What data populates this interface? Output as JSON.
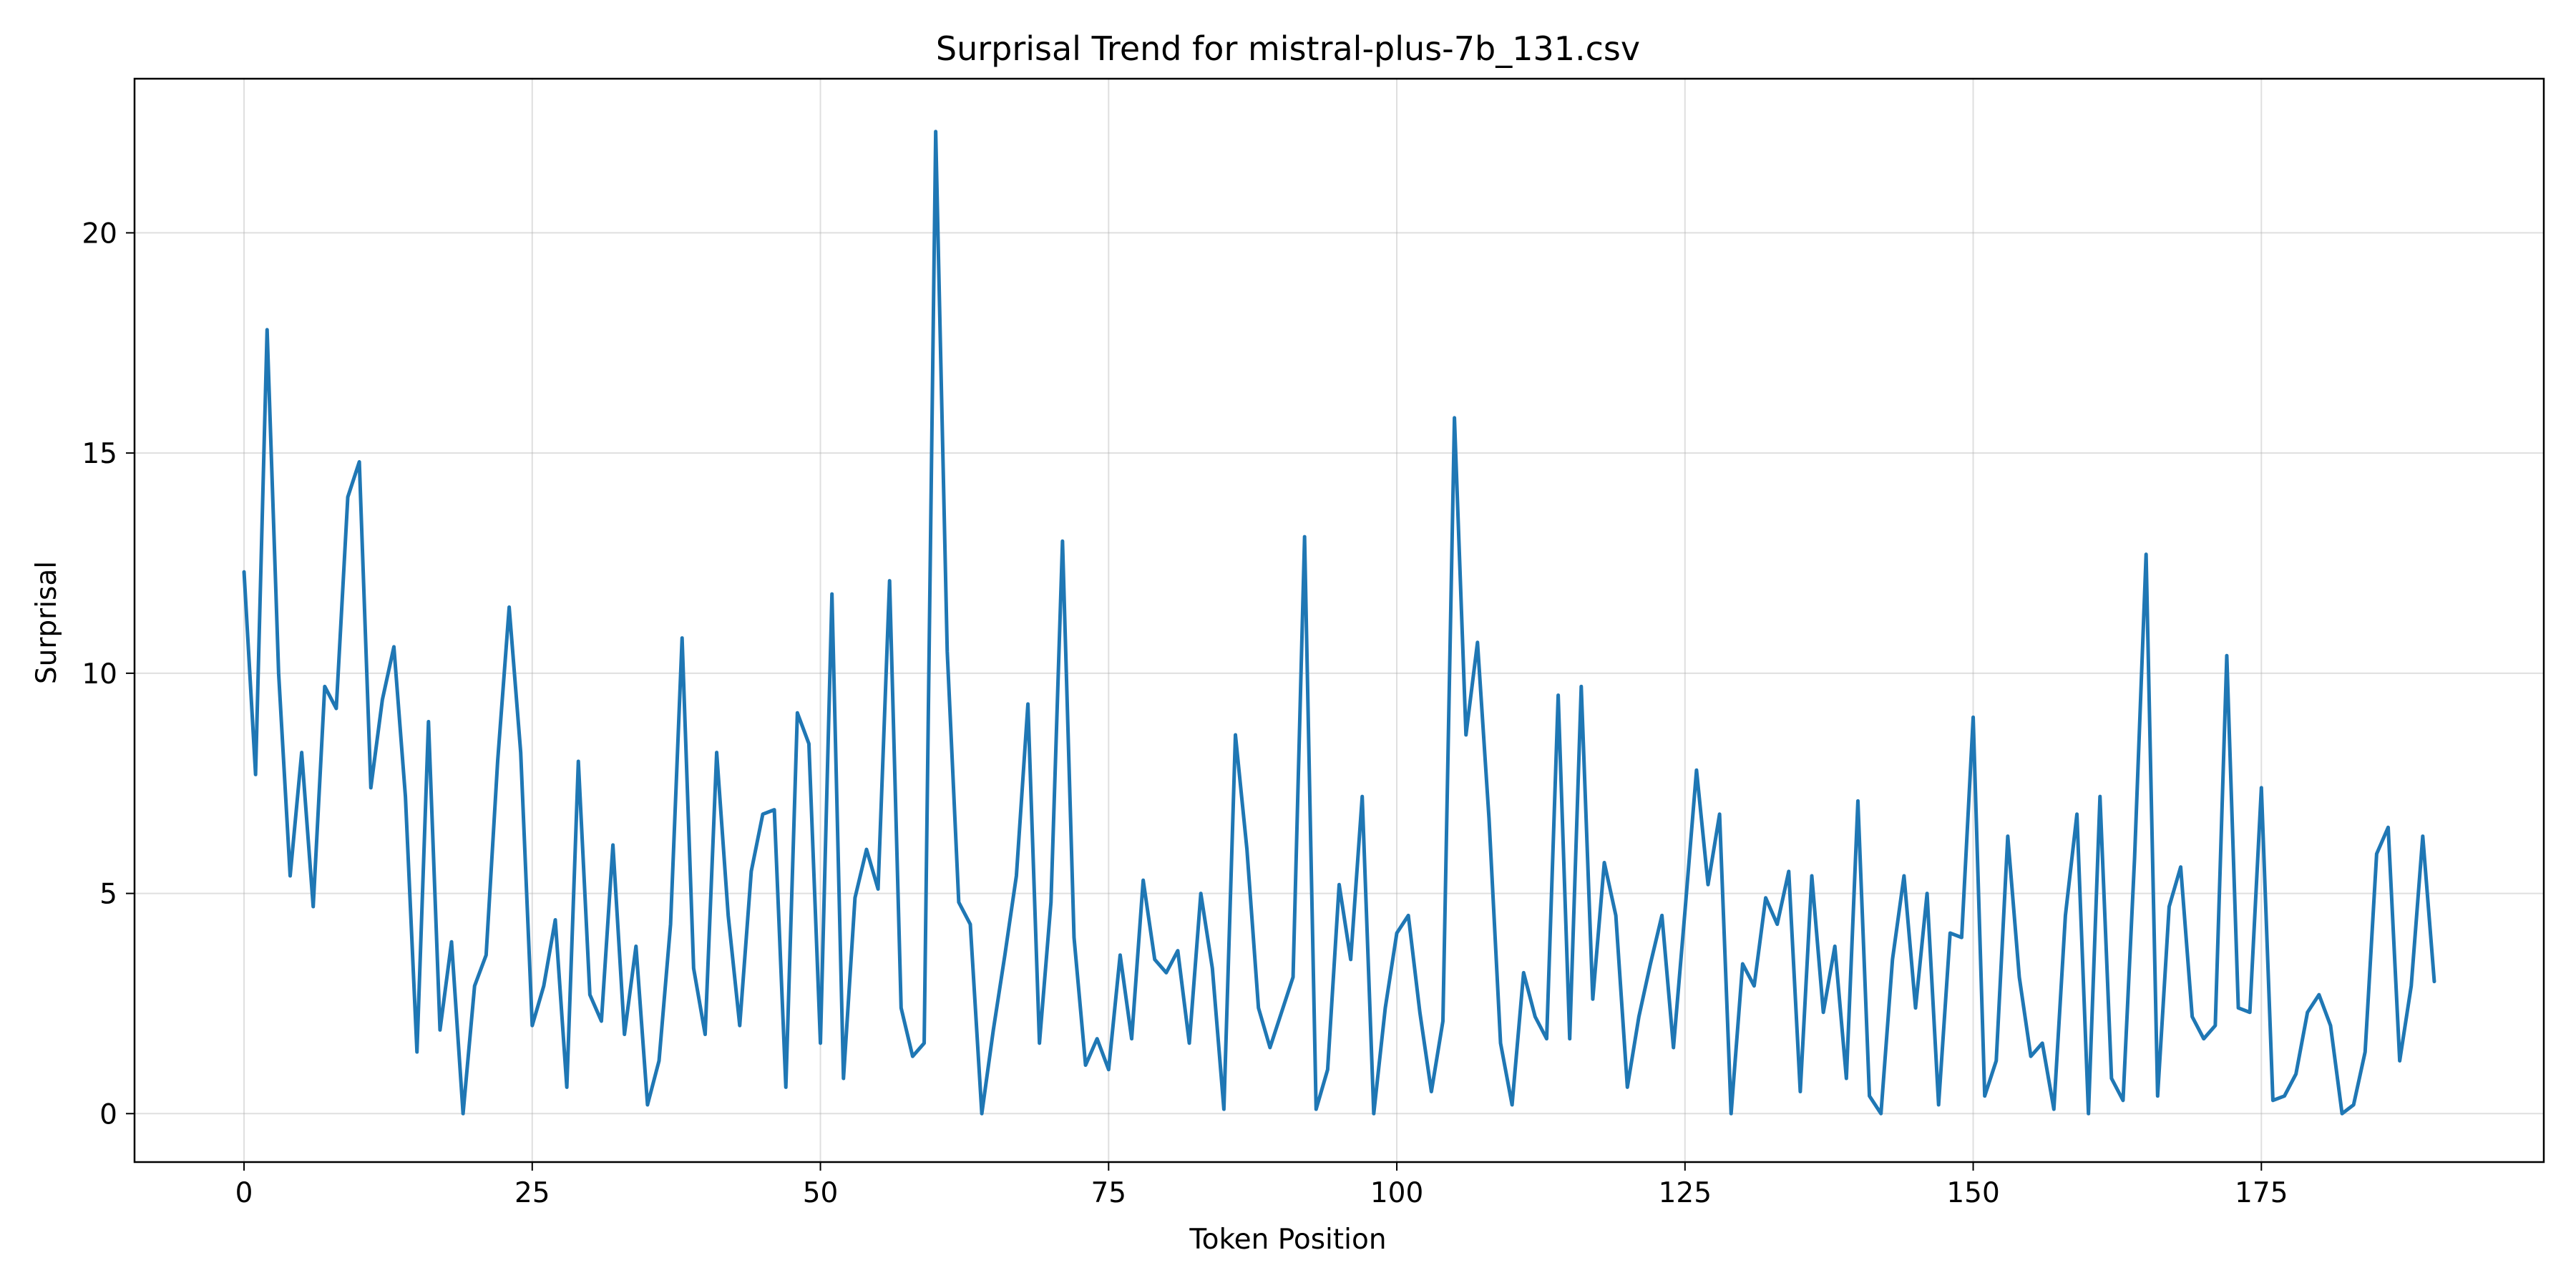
{
  "chart_data": {
    "type": "line",
    "title": "Surprisal Trend for mistral-plus-7b_131.csv",
    "xlabel": "Token Position",
    "ylabel": "Surprisal",
    "xlim": [
      -9.5,
      199.5
    ],
    "ylim": [
      -1.1,
      23.5
    ],
    "xticks": [
      0,
      25,
      50,
      75,
      100,
      125,
      150,
      175
    ],
    "yticks": [
      0,
      5,
      10,
      15,
      20
    ],
    "grid": true,
    "color": "#1f77b4",
    "series": [
      {
        "values": [
          12.3,
          7.7,
          17.8,
          10.0,
          5.4,
          8.2,
          4.7,
          9.7,
          9.2,
          14.0,
          14.8,
          7.4,
          9.4,
          10.6,
          7.2,
          1.4,
          8.9,
          1.9,
          3.9,
          0.0,
          2.9,
          3.6,
          8.0,
          11.5,
          8.2,
          2.0,
          2.9,
          4.4,
          0.6,
          8.0,
          2.7,
          2.1,
          6.1,
          1.8,
          3.8,
          0.2,
          1.2,
          4.3,
          10.8,
          3.3,
          1.8,
          8.2,
          4.5,
          2.0,
          5.5,
          6.8,
          6.9,
          0.6,
          9.1,
          8.4,
          1.6,
          11.8,
          0.8,
          4.9,
          6.0,
          5.1,
          12.1,
          2.4,
          1.3,
          1.6,
          22.3,
          10.5,
          4.8,
          4.3,
          0.0,
          1.9,
          3.6,
          5.4,
          9.3,
          1.6,
          4.8,
          13.0,
          4.0,
          1.1,
          1.7,
          1.0,
          3.6,
          1.7,
          5.3,
          3.5,
          3.2,
          3.7,
          1.6,
          5.0,
          3.3,
          0.1,
          8.6,
          6.0,
          2.4,
          1.5,
          2.3,
          3.1,
          13.1,
          0.1,
          1.0,
          5.2,
          3.5,
          7.2,
          0.0,
          2.4,
          4.1,
          4.5,
          2.3,
          0.5,
          2.1,
          15.8,
          8.6,
          10.7,
          6.7,
          1.6,
          0.2,
          3.2,
          2.2,
          1.7,
          9.5,
          1.7,
          9.7,
          2.6,
          5.7,
          4.5,
          0.6,
          2.2,
          3.4,
          4.5,
          1.5,
          4.6,
          7.8,
          5.2,
          6.8,
          0.0,
          3.4,
          2.9,
          4.9,
          4.3,
          5.5,
          0.5,
          5.4,
          2.3,
          3.8,
          0.8,
          7.1,
          0.4,
          0.0,
          3.5,
          5.4,
          2.4,
          5.0,
          0.2,
          4.1,
          4.0,
          9.0,
          0.4,
          1.2,
          6.3,
          3.1,
          1.3,
          1.6,
          0.1,
          4.5,
          6.8,
          0.0,
          7.2,
          0.8,
          0.3,
          5.8,
          12.7,
          0.4,
          4.7,
          5.6,
          2.2,
          1.7,
          2.0,
          10.4,
          2.4,
          2.3,
          7.4,
          0.3,
          0.4,
          0.9,
          2.3,
          2.7,
          2.0,
          0.0,
          0.2,
          1.4,
          5.9,
          6.5,
          1.2,
          2.9,
          6.3,
          3.0
        ]
      }
    ]
  }
}
